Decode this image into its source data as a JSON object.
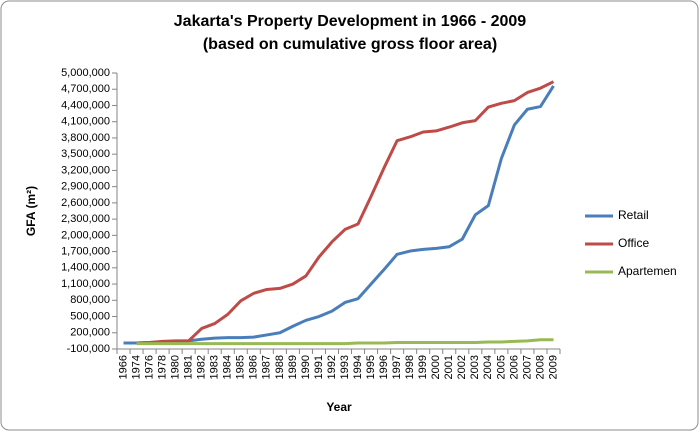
{
  "chart_data": {
    "type": "line",
    "title": "Jakarta's Property Development in 1966 - 2009",
    "subtitle": "(based on cumulative gross floor area)",
    "y_label": "GFA (m²)",
    "x_label": "Year",
    "categories": [
      "1966",
      "1974",
      "1976",
      "1978",
      "1980",
      "1981",
      "1982",
      "1983",
      "1984",
      "1985",
      "1986",
      "1987",
      "1988",
      "1989",
      "1990",
      "1991",
      "1992",
      "1993",
      "1994",
      "1995",
      "1996",
      "1997",
      "1998",
      "1999",
      "2000",
      "2001",
      "2002",
      "2003",
      "2004",
      "2005",
      "2006",
      "2007",
      "2008",
      "2009"
    ],
    "series": [
      {
        "name": "Retail",
        "color": "#4a7ebb",
        "values": [
          10000,
          10000,
          20000,
          30000,
          40000,
          50000,
          80000,
          100000,
          110000,
          110000,
          120000,
          160000,
          200000,
          320000,
          430000,
          500000,
          600000,
          760000,
          830000,
          1100000,
          1370000,
          1650000,
          1710000,
          1740000,
          1760000,
          1790000,
          1930000,
          2380000,
          2550000,
          3420000,
          4040000,
          4330000,
          4380000,
          4760000
        ]
      },
      {
        "name": "Office",
        "color": "#be4b48",
        "values": [
          null,
          10000,
          20000,
          40000,
          50000,
          50000,
          280000,
          370000,
          540000,
          790000,
          930000,
          1000000,
          1020000,
          1100000,
          1250000,
          1600000,
          1880000,
          2110000,
          2210000,
          2720000,
          3250000,
          3750000,
          3820000,
          3910000,
          3930000,
          4000000,
          4080000,
          4120000,
          4370000,
          4440000,
          4490000,
          4640000,
          4720000,
          4840000
        ]
      },
      {
        "name": "Apartemen",
        "color": "#98b954",
        "values": [
          null,
          0,
          0,
          0,
          0,
          0,
          0,
          0,
          0,
          0,
          0,
          0,
          0,
          0,
          0,
          0,
          0,
          0,
          10000,
          10000,
          10000,
          20000,
          20000,
          20000,
          20000,
          20000,
          20000,
          20000,
          30000,
          30000,
          40000,
          50000,
          70000,
          70000
        ]
      }
    ],
    "ylim": [
      -100000,
      5000000
    ],
    "yticks": [
      {
        "value": -100000,
        "label": "-100,000"
      },
      {
        "value": 200000,
        "label": "200,000"
      },
      {
        "value": 500000,
        "label": "500,000"
      },
      {
        "value": 800000,
        "label": "800,000"
      },
      {
        "value": 1100000,
        "label": "1,100,000"
      },
      {
        "value": 1400000,
        "label": "1,400,000"
      },
      {
        "value": 1700000,
        "label": "1,700,000"
      },
      {
        "value": 2000000,
        "label": "2,000,000"
      },
      {
        "value": 2300000,
        "label": "2,300,000"
      },
      {
        "value": 2600000,
        "label": "2,600,000"
      },
      {
        "value": 2900000,
        "label": "2,900,000"
      },
      {
        "value": 3200000,
        "label": "3,200,000"
      },
      {
        "value": 3500000,
        "label": "3,500,000"
      },
      {
        "value": 3800000,
        "label": "3,800,000"
      },
      {
        "value": 4100000,
        "label": "4,100,000"
      },
      {
        "value": 4400000,
        "label": "4,400,000"
      },
      {
        "value": 4700000,
        "label": "4,700,000"
      },
      {
        "value": 5000000,
        "label": "5,000,000"
      }
    ],
    "grid": false,
    "legend": "right"
  }
}
